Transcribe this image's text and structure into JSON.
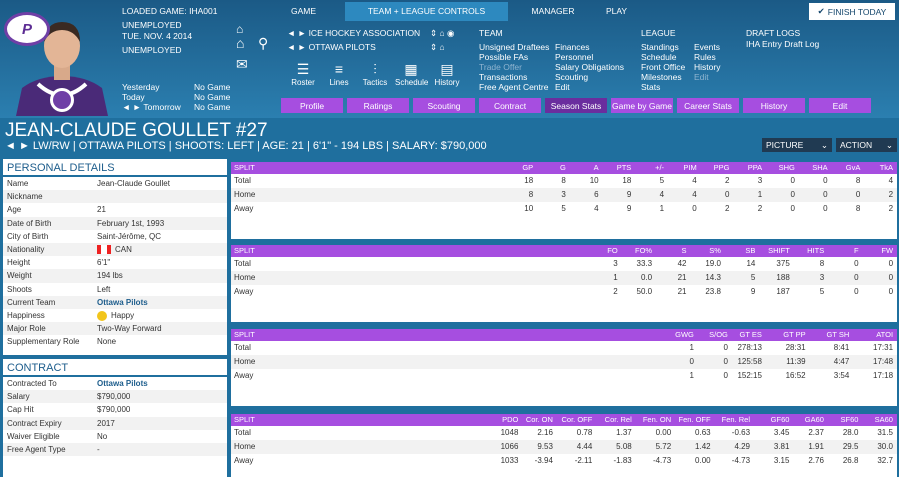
{
  "header": {
    "loaded_game_label": "LOADED GAME:",
    "loaded_game": "IHA001",
    "status1": "UNEMPLOYED",
    "date": "TUE. NOV. 4 2014",
    "status2": "UNEMPLOYED",
    "finish_label": "FINISH TODAY"
  },
  "tabs": [
    {
      "label": "GAME"
    },
    {
      "label": "TEAM + LEAGUE CONTROLS"
    },
    {
      "label": "MANAGER"
    },
    {
      "label": "PLAY"
    }
  ],
  "schedule": [
    {
      "label": "Yesterday",
      "value": "No Game"
    },
    {
      "label": "Today",
      "value": "No Game"
    },
    {
      "label": "Tomorrow",
      "value": "No Game"
    }
  ],
  "context": {
    "league": "ICE HOCKEY ASSOCIATION",
    "team": "OTTAWA PILOTS"
  },
  "tools": [
    {
      "label": "Roster",
      "icon": "roster-icon"
    },
    {
      "label": "Lines",
      "icon": "lines-icon"
    },
    {
      "label": "Tactics",
      "icon": "tactics-icon"
    },
    {
      "label": "Schedule",
      "icon": "schedule-icon"
    },
    {
      "label": "History",
      "icon": "history-icon"
    }
  ],
  "team_menu": {
    "title": "TEAM",
    "col1": [
      "Unsigned Draftees",
      "Possible FAs",
      "Trade Offer",
      "Transactions",
      "Free Agent Centre"
    ],
    "col2": [
      "Finances",
      "Personnel",
      "Salary Obligations",
      "Scouting",
      "Edit"
    ]
  },
  "league_menu": {
    "title": "LEAGUE",
    "col1": [
      "Standings",
      "Schedule",
      "Front Office",
      "Milestones",
      "Stats"
    ],
    "col2": [
      "Events",
      "Rules",
      "History",
      "Edit"
    ]
  },
  "draft_menu": {
    "title": "DRAFT LOGS",
    "items": [
      "IHA Entry Draft Log"
    ]
  },
  "profile_tabs": [
    "Profile",
    "Ratings",
    "Scouting",
    "Contract",
    "Season Stats",
    "Game by Game",
    "Career Stats",
    "History",
    "Edit"
  ],
  "player": {
    "name": "JEAN-CLAUDE GOULLET #27",
    "subline": "LW/RW | OTTAWA PILOTS | SHOOTS: LEFT | AGE: 21 | 6'1\" - 194 LBS | SALARY: $790,000"
  },
  "dropdowns": {
    "picture": "PICTURE",
    "action": "ACTION"
  },
  "personal": {
    "title": "PERSONAL DETAILS",
    "rows": [
      {
        "label": "Name",
        "value": "Jean-Claude Goullet"
      },
      {
        "label": "Nickname",
        "value": ""
      },
      {
        "label": "Age",
        "value": "21"
      },
      {
        "label": "Date of Birth",
        "value": "February 1st, 1993"
      },
      {
        "label": "City of Birth",
        "value": "Saint-Jérôme, QC"
      },
      {
        "label": "Nationality",
        "value": "CAN"
      },
      {
        "label": "Height",
        "value": "6'1\""
      },
      {
        "label": "Weight",
        "value": "194 lbs"
      },
      {
        "label": "Shoots",
        "value": "Left"
      },
      {
        "label": "Current Team",
        "value": "Ottawa Pilots"
      },
      {
        "label": "Happiness",
        "value": "Happy"
      },
      {
        "label": "Major Role",
        "value": "Two-Way Forward"
      },
      {
        "label": "Supplementary Role",
        "value": "None"
      }
    ]
  },
  "contract": {
    "title": "CONTRACT",
    "rows": [
      {
        "label": "Contracted To",
        "value": "Ottawa Pilots"
      },
      {
        "label": "Salary",
        "value": "$790,000"
      },
      {
        "label": "Cap Hit",
        "value": "$790,000"
      },
      {
        "label": "Contract Expiry",
        "value": "2017"
      },
      {
        "label": "Waiver Eligible",
        "value": "No"
      },
      {
        "label": "Free Agent Type",
        "value": "-"
      }
    ]
  },
  "tables": [
    {
      "headers": [
        "SPLIT",
        "GP",
        "G",
        "A",
        "PTS",
        "+/-",
        "PIM",
        "PPG",
        "PPA",
        "SHG",
        "SHA",
        "GvA",
        "TkA"
      ],
      "rows": [
        [
          "Total",
          "18",
          "8",
          "10",
          "18",
          "5",
          "4",
          "2",
          "3",
          "0",
          "0",
          "8",
          "4"
        ],
        [
          "Home",
          "8",
          "3",
          "6",
          "9",
          "4",
          "4",
          "0",
          "1",
          "0",
          "0",
          "0",
          "2"
        ],
        [
          "Away",
          "10",
          "5",
          "4",
          "9",
          "1",
          "0",
          "2",
          "2",
          "0",
          "0",
          "8",
          "2"
        ]
      ]
    },
    {
      "headers": [
        "SPLIT",
        "FO",
        "FO%",
        "S",
        "S%",
        "SB",
        "SHIFT",
        "HITS",
        "F",
        "FW"
      ],
      "rows": [
        [
          "Total",
          "3",
          "33.3",
          "42",
          "19.0",
          "14",
          "375",
          "8",
          "0",
          "0"
        ],
        [
          "Home",
          "1",
          "0.0",
          "21",
          "14.3",
          "5",
          "188",
          "3",
          "0",
          "0"
        ],
        [
          "Away",
          "2",
          "50.0",
          "21",
          "23.8",
          "9",
          "187",
          "5",
          "0",
          "0"
        ]
      ]
    },
    {
      "headers": [
        "SPLIT",
        "GWG",
        "S/OG",
        "GT ES",
        "GT PP",
        "GT SH",
        "ATOI"
      ],
      "rows": [
        [
          "Total",
          "1",
          "0",
          "278:13",
          "28:31",
          "8:41",
          "17:31"
        ],
        [
          "Home",
          "0",
          "0",
          "125:58",
          "11:39",
          "4:47",
          "17:48"
        ],
        [
          "Away",
          "1",
          "0",
          "152:15",
          "16:52",
          "3:54",
          "17:18"
        ]
      ]
    },
    {
      "headers": [
        "SPLIT",
        "PDO",
        "Cor. ON",
        "Cor. OFF",
        "Cor. Rel",
        "Fen. ON",
        "Fen. OFF",
        "Fen. Rel",
        "GF60",
        "GA60",
        "SF60",
        "SA60"
      ],
      "rows": [
        [
          "Total",
          "1048",
          "2.16",
          "0.78",
          "1.37",
          "0.00",
          "0.63",
          "-0.63",
          "3.45",
          "2.37",
          "28.0",
          "31.5"
        ],
        [
          "Home",
          "1066",
          "9.53",
          "4.44",
          "5.08",
          "5.72",
          "1.42",
          "4.29",
          "3.81",
          "1.91",
          "29.5",
          "30.0"
        ],
        [
          "Away",
          "1033",
          "-3.94",
          "-2.11",
          "-1.83",
          "-4.73",
          "0.00",
          "-4.73",
          "3.15",
          "2.76",
          "26.8",
          "32.7"
        ]
      ]
    }
  ]
}
